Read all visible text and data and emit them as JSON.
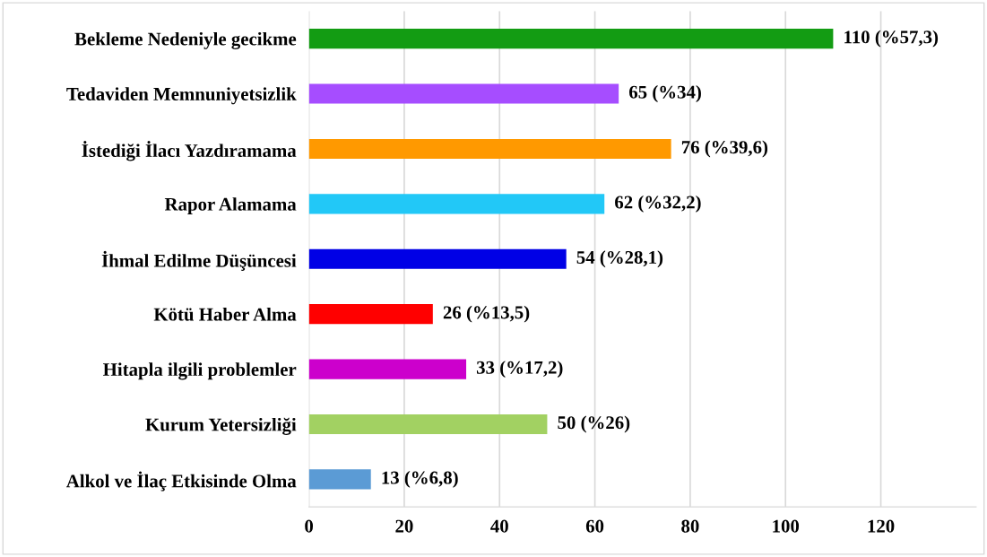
{
  "chart_data": {
    "type": "bar",
    "orientation": "horizontal",
    "categories": [
      "Bekleme Nedeniyle gecikme",
      "Tedaviden Memnuniyetsizlik",
      "İstediği İlacı Yazdıramama",
      "Rapor Alamama",
      "İhmal Edilme Düşüncesi",
      "Kötü Haber Alma",
      "Hitapla ilgili problemler",
      "Kurum Yetersizliği",
      "Alkol ve İlaç Etkisinde Olma"
    ],
    "values": [
      110,
      65,
      76,
      62,
      54,
      26,
      33,
      50,
      13
    ],
    "colors": [
      "#139c13",
      "#a64dff",
      "#ff9900",
      "#22c8f7",
      "#0000e6",
      "#ff0000",
      "#cc00cc",
      "#a2d162",
      "#5b9bd5"
    ],
    "value_labels": [
      "110 (%57,3)",
      "65 (%34)",
      "76 (%39,6)",
      "62 (%32,2)",
      "54 (%28,1)",
      "26 (%13,5)",
      "33 (%17,2)",
      "50 (%26)",
      "13 (%6,8)"
    ],
    "xlim": [
      0,
      140
    ],
    "xticks": [
      0,
      20,
      40,
      60,
      80,
      100,
      120
    ],
    "grid": "x",
    "legend": false
  }
}
